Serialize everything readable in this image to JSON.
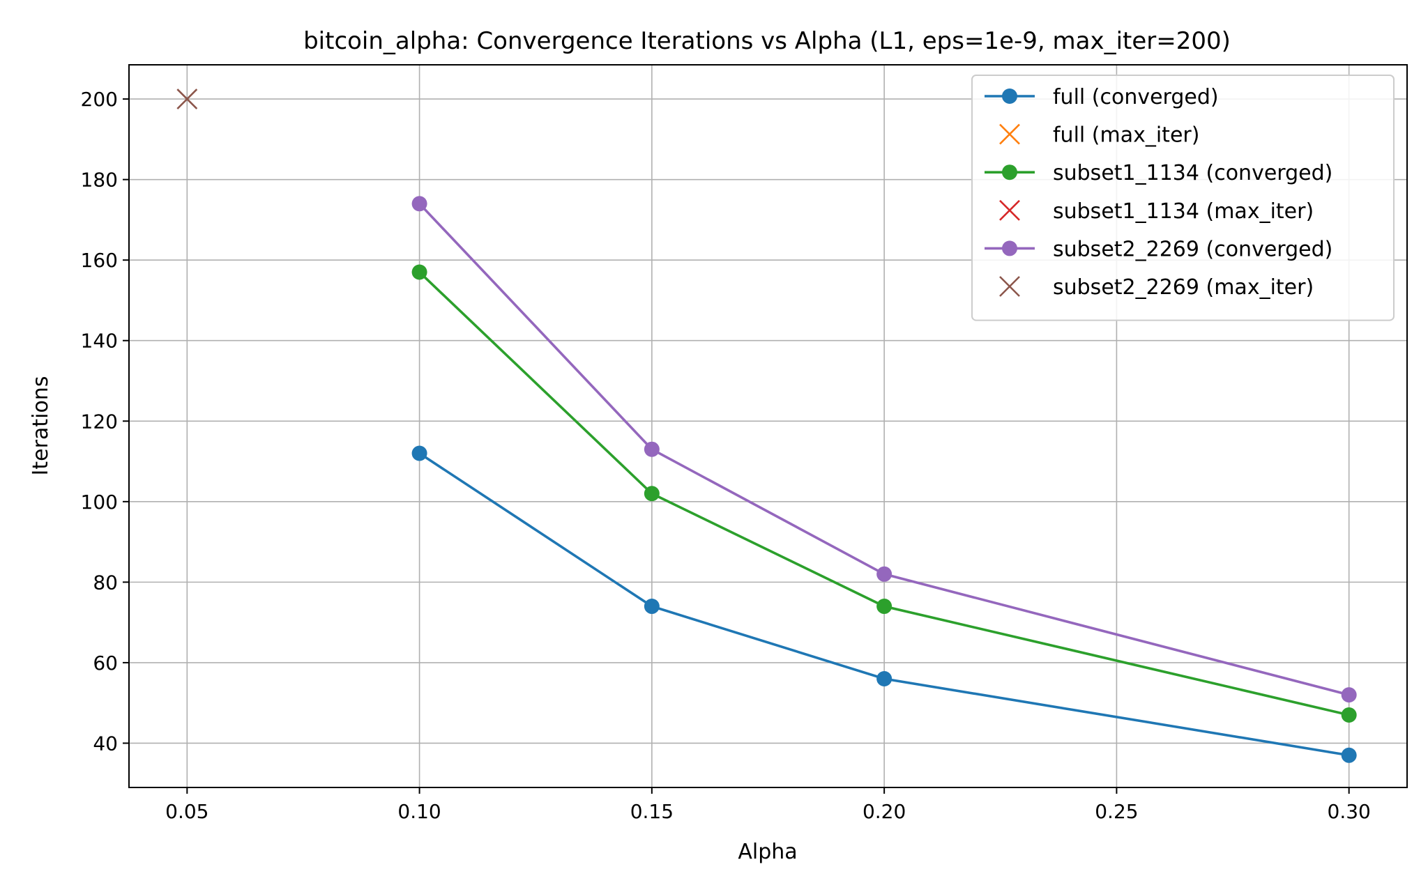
{
  "chart_data": {
    "type": "line",
    "title": "bitcoin_alpha: Convergence Iterations vs Alpha (L1, eps=1e-9, max_iter=200)",
    "xlabel": "Alpha",
    "ylabel": "Iterations",
    "xlim": [
      0.0375,
      0.3125
    ],
    "ylim": [
      29,
      208.5
    ],
    "xticks": [
      0.05,
      0.1,
      0.15,
      0.2,
      0.25,
      0.3
    ],
    "xtick_labels": [
      "0.05",
      "0.10",
      "0.15",
      "0.20",
      "0.25",
      "0.30"
    ],
    "yticks": [
      40,
      60,
      80,
      100,
      120,
      140,
      160,
      180,
      200
    ],
    "ytick_labels": [
      "40",
      "60",
      "80",
      "100",
      "120",
      "140",
      "160",
      "180",
      "200"
    ],
    "grid": true,
    "legend_position": "top-right",
    "series": [
      {
        "name": "full (converged)",
        "color": "#1f77b4",
        "marker": "circle",
        "line": true,
        "x": [
          0.1,
          0.15,
          0.2,
          0.3
        ],
        "y": [
          112,
          74,
          56,
          37
        ]
      },
      {
        "name": "full (max_iter)",
        "color": "#ff7f0e",
        "marker": "x",
        "line": false,
        "x": [],
        "y": []
      },
      {
        "name": "subset1_1134 (converged)",
        "color": "#2ca02c",
        "marker": "circle",
        "line": true,
        "x": [
          0.1,
          0.15,
          0.2,
          0.3
        ],
        "y": [
          157,
          102,
          74,
          47
        ]
      },
      {
        "name": "subset1_1134 (max_iter)",
        "color": "#d62728",
        "marker": "x",
        "line": false,
        "x": [],
        "y": []
      },
      {
        "name": "subset2_2269 (converged)",
        "color": "#9467bd",
        "marker": "circle",
        "line": true,
        "x": [
          0.1,
          0.15,
          0.2,
          0.3
        ],
        "y": [
          174,
          113,
          82,
          52
        ]
      },
      {
        "name": "subset2_2269 (max_iter)",
        "color": "#8c564b",
        "marker": "x",
        "line": false,
        "x": [
          0.05
        ],
        "y": [
          200
        ]
      }
    ]
  }
}
